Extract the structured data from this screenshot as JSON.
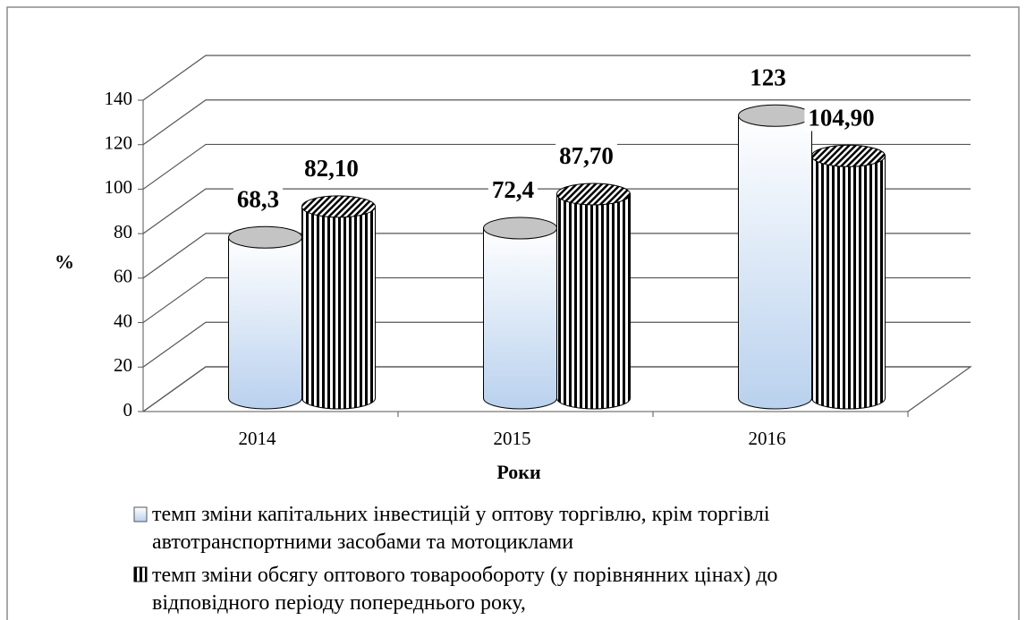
{
  "chart_data": {
    "type": "bar3d",
    "categories": [
      "2014",
      "2015",
      "2016"
    ],
    "series": [
      {
        "name": "темп зміни капітальних інвестицій у оптову торгівлю, крім торгівлі автотранспортними засобами та мотоциклами",
        "color": "#b9d1ee",
        "values": [
          68.3,
          72.4,
          123
        ],
        "value_labels": [
          "68,3",
          "72,4",
          "123"
        ]
      },
      {
        "name": "темп зміни обсягу оптового товарообороту (у порівнянних цінах) до відповідного періоду попереднього року,",
        "color": "#000000",
        "values": [
          82.1,
          87.7,
          104.9
        ],
        "value_labels": [
          "82,10",
          "87,70",
          "104,90"
        ]
      }
    ],
    "ylabel": "%",
    "xlabel": "Роки",
    "ylim": [
      0,
      140
    ],
    "yticks": [
      0,
      20,
      40,
      60,
      80,
      100,
      120,
      140
    ],
    "grid": true
  }
}
